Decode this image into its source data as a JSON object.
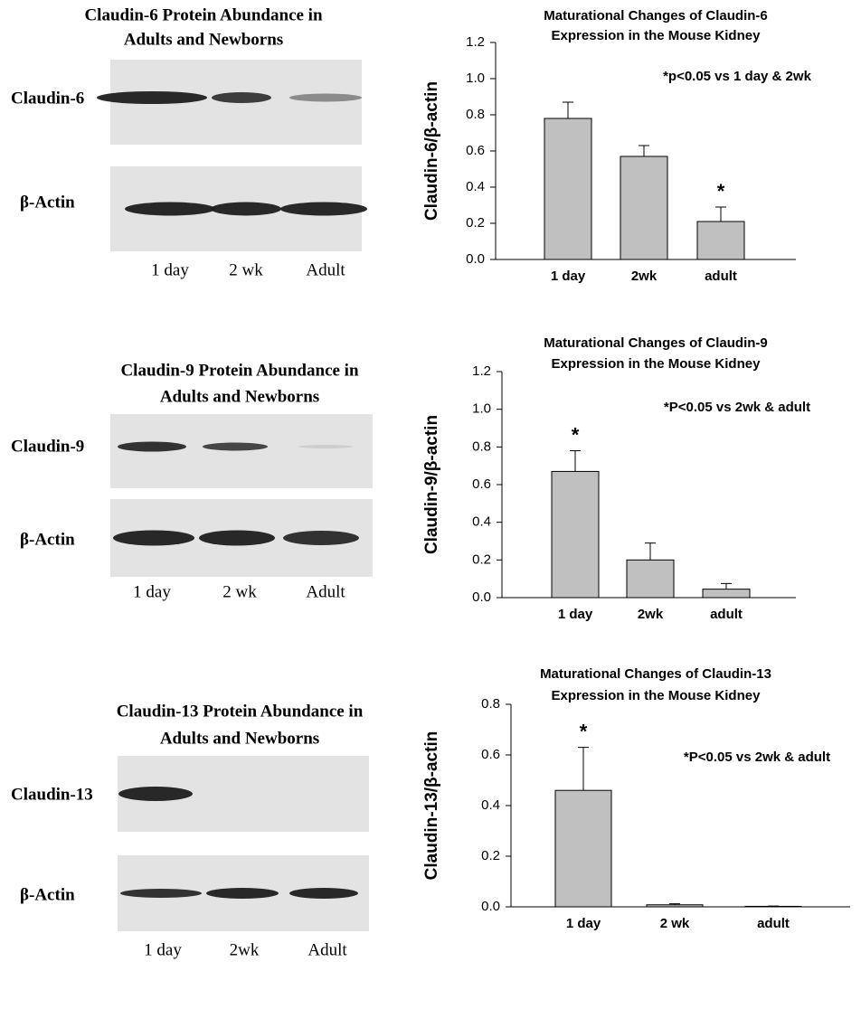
{
  "chart_data": [
    {
      "type": "bar",
      "title": [
        "Maturational Changes of Claudin-6",
        "Expression in the Mouse Kidney"
      ],
      "ylabel": "Claudin-6/β-actin",
      "categories": [
        "1 day",
        "2wk",
        "adult"
      ],
      "values": [
        0.78,
        0.57,
        0.21
      ],
      "errors": [
        0.09,
        0.06,
        0.08
      ],
      "color": "#c0c0c0",
      "ylim": [
        0,
        1.2
      ],
      "yticks": [
        {
          "value": 0,
          "label": "0.0"
        },
        0.2,
        0.4,
        0.6,
        0.8,
        {
          "value": 1,
          "label": "1.0"
        },
        1.2
      ],
      "annotation": "*p<0.05 vs 1 day & 2wk",
      "markers": [
        {
          "index": 2,
          "label": "*"
        }
      ]
    },
    {
      "type": "bar",
      "title": [
        "Maturational Changes of Claudin-9",
        "Expression in the Mouse Kidney"
      ],
      "ylabel": "Claudin-9/β-actin",
      "categories": [
        "1 day",
        "2wk",
        "adult"
      ],
      "values": [
        0.67,
        0.2,
        0.045
      ],
      "errors": [
        0.11,
        0.09,
        0.03
      ],
      "color": "#c0c0c0",
      "ylim": [
        0,
        1.2
      ],
      "yticks": [
        {
          "value": 0,
          "label": "0.0"
        },
        0.2,
        0.4,
        0.6,
        0.8,
        {
          "value": 1,
          "label": "1.0"
        },
        1.2
      ],
      "annotation": "*P<0.05 vs 2wk & adult",
      "markers": [
        {
          "index": 0,
          "label": "*"
        }
      ]
    },
    {
      "type": "bar",
      "title": [
        "Maturational Changes of Claudin-13",
        "Expression in the Mouse Kidney"
      ],
      "ylabel": "Claudin-13/β-actin",
      "categories": [
        "1 day",
        "2 wk",
        "adult"
      ],
      "values": [
        0.46,
        0.008,
        0.002
      ],
      "errors": [
        0.17,
        0.004,
        0.001
      ],
      "color": "#c0c0c0",
      "ylim": [
        0,
        0.8
      ],
      "yticks": [
        {
          "value": 0,
          "label": "0.0"
        },
        0.2,
        0.4,
        0.6,
        0.8
      ],
      "annotation": "*P<0.05 vs 2wk & adult",
      "markers": [
        {
          "index": 0,
          "label": "*"
        }
      ]
    }
  ],
  "blots": [
    {
      "title": [
        "Claudin-6 Protein Abundance in",
        "Adults and Newborns"
      ],
      "labels": [
        "Claudin-6",
        "β-Actin"
      ],
      "lanes": [
        "1 day",
        "2 wk",
        "Adult"
      ]
    },
    {
      "title": [
        "Claudin-9 Protein Abundance in",
        "Adults and Newborns"
      ],
      "labels": [
        "Claudin-9",
        "β-Actin"
      ],
      "lanes": [
        "1 day",
        "2 wk",
        "Adult"
      ]
    },
    {
      "title": [
        "Claudin-13 Protein Abundance in",
        "Adults and Newborns"
      ],
      "labels": [
        "Claudin-13",
        "β-Actin"
      ],
      "lanes": [
        "1 day",
        "2wk",
        "Adult"
      ]
    }
  ]
}
